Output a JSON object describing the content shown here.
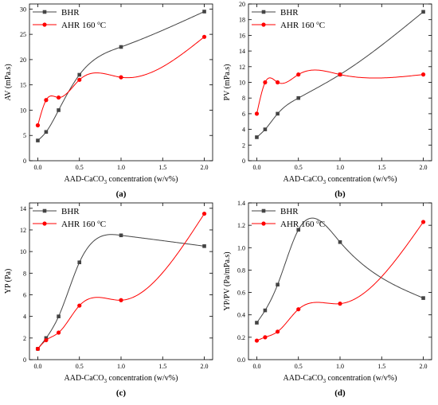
{
  "chart_data": [
    {
      "type": "line",
      "panel_label": "(a)",
      "ylabel": "AV (mPa.s)",
      "xlabel_parts": [
        "AAD-CaCO",
        "3",
        " concentration (w/v%)"
      ],
      "xlim": [
        -0.1,
        2.1
      ],
      "ylim": [
        0,
        31
      ],
      "xticks": [
        0.0,
        0.5,
        1.0,
        1.5,
        2.0
      ],
      "xtick_labels": [
        "0.0",
        "0.5",
        "1.0",
        "1.5",
        "2.0"
      ],
      "yticks": [
        0,
        5,
        10,
        15,
        20,
        25,
        30
      ],
      "ytick_labels": [
        "0",
        "5",
        "10",
        "15",
        "20",
        "25",
        "30"
      ],
      "legend_position": "top-left",
      "series": [
        {
          "name": "BHR",
          "color": "#444444",
          "marker": "square",
          "x": [
            0,
            0.1,
            0.25,
            0.5,
            1.0,
            2.0
          ],
          "y": [
            4,
            5.7,
            10,
            17,
            22.5,
            29.5
          ]
        },
        {
          "name_parts": [
            "AHR 160 ",
            "o",
            "C"
          ],
          "color": "#ff0000",
          "marker": "circle",
          "x": [
            0,
            0.1,
            0.25,
            0.5,
            1.0,
            2.0
          ],
          "y": [
            7,
            12,
            12.5,
            16,
            16.5,
            24.5
          ]
        }
      ]
    },
    {
      "type": "line",
      "panel_label": "(b)",
      "ylabel": "PV (mPa.s)",
      "xlabel_parts": [
        "AAD-CaCO",
        "3",
        " concentration (w/v%)"
      ],
      "xlim": [
        -0.1,
        2.1
      ],
      "ylim": [
        0,
        20
      ],
      "xticks": [
        0.0,
        0.5,
        1.0,
        1.5,
        2.0
      ],
      "xtick_labels": [
        "0.0",
        "0.5",
        "1.0",
        "1.5",
        "2.0"
      ],
      "yticks": [
        0,
        2,
        4,
        6,
        8,
        10,
        12,
        14,
        16,
        18,
        20
      ],
      "ytick_labels": [
        "0",
        "2",
        "4",
        "6",
        "8",
        "10",
        "12",
        "14",
        "16",
        "18",
        "20"
      ],
      "legend_position": "top-left",
      "series": [
        {
          "name": "BHR",
          "color": "#444444",
          "marker": "square",
          "x": [
            0,
            0.1,
            0.25,
            0.5,
            1.0,
            2.0
          ],
          "y": [
            3,
            4,
            6,
            8,
            11,
            19
          ]
        },
        {
          "name_parts": [
            "AHR 160 ",
            "o",
            "C"
          ],
          "color": "#ff0000",
          "marker": "circle",
          "x": [
            0,
            0.1,
            0.25,
            0.5,
            1.0,
            2.0
          ],
          "y": [
            6,
            10,
            10,
            11,
            11,
            11
          ]
        }
      ]
    },
    {
      "type": "line",
      "panel_label": "(c)",
      "ylabel": "YP (Pa)",
      "xlabel_parts": [
        "AAD-CaCO",
        "3",
        " concentration (w/v%)"
      ],
      "xlim": [
        -0.1,
        2.1
      ],
      "ylim": [
        0,
        14.5
      ],
      "xticks": [
        0.0,
        0.5,
        1.0,
        1.5,
        2.0
      ],
      "xtick_labels": [
        "0.0",
        "0.5",
        "1.0",
        "1.5",
        "2.0"
      ],
      "yticks": [
        0,
        2,
        4,
        6,
        8,
        10,
        12,
        14
      ],
      "ytick_labels": [
        "0",
        "2",
        "4",
        "6",
        "8",
        "10",
        "12",
        "14"
      ],
      "legend_position": "top-left",
      "series": [
        {
          "name": "BHR",
          "color": "#444444",
          "marker": "square",
          "x": [
            0,
            0.1,
            0.25,
            0.5,
            1.0,
            2.0
          ],
          "y": [
            1,
            2,
            4,
            9,
            11.5,
            10.5
          ]
        },
        {
          "name_parts": [
            "AHR 160 ",
            "o",
            "C"
          ],
          "color": "#ff0000",
          "marker": "circle",
          "x": [
            0,
            0.1,
            0.25,
            0.5,
            1.0,
            2.0
          ],
          "y": [
            1,
            1.8,
            2.5,
            5,
            5.5,
            13.5
          ]
        }
      ]
    },
    {
      "type": "line",
      "panel_label": "(d)",
      "ylabel": "YP/PV (Pa/mPa.s)",
      "xlabel_parts": [
        "AAD-CaCO",
        "3",
        " concentration (w/v%)"
      ],
      "xlim": [
        -0.1,
        2.1
      ],
      "ylim": [
        0,
        1.4
      ],
      "xticks": [
        0.0,
        0.5,
        1.0,
        1.5,
        2.0
      ],
      "xtick_labels": [
        "0.0",
        "0.5",
        "1.0",
        "1.5",
        "2.0"
      ],
      "yticks": [
        0,
        0.2,
        0.4,
        0.6,
        0.8,
        1.0,
        1.2,
        1.4
      ],
      "ytick_labels": [
        "0.0",
        "0.2",
        "0.4",
        "0.6",
        "0.8",
        "1.0",
        "1.2",
        "1.4"
      ],
      "legend_position": "top-left",
      "series": [
        {
          "name": "BHR",
          "color": "#444444",
          "marker": "square",
          "x": [
            0,
            0.1,
            0.25,
            0.5,
            1.0,
            2.0
          ],
          "y": [
            0.33,
            0.44,
            0.67,
            1.16,
            1.05,
            0.55
          ]
        },
        {
          "name_parts": [
            "AHR 160 ",
            "o",
            "C"
          ],
          "color": "#ff0000",
          "marker": "circle",
          "x": [
            0,
            0.1,
            0.25,
            0.5,
            1.0,
            2.0
          ],
          "y": [
            0.17,
            0.2,
            0.25,
            0.45,
            0.5,
            1.23
          ]
        }
      ]
    }
  ]
}
